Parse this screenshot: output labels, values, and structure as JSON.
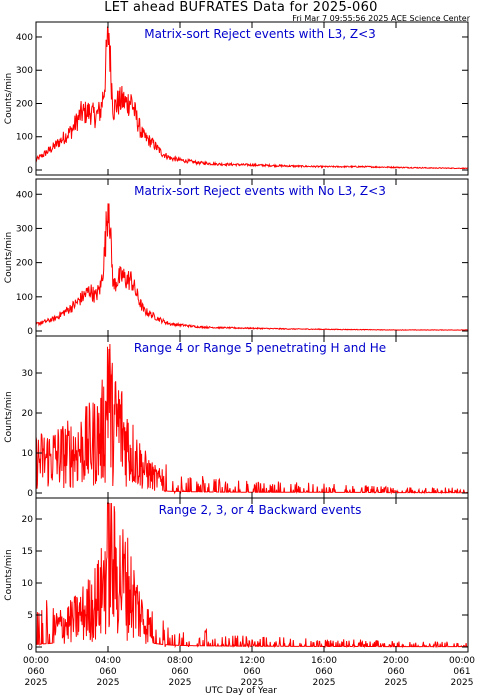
{
  "header": {
    "title": "LET ahead BUFRATES Data for 2025-060",
    "timestamp": "Fri Mar  7 09:55:56 2025 ACE Science Center"
  },
  "x_axis": {
    "title": "UTC Day of Year",
    "ticks": [
      {
        "time": "00:00",
        "doy": "060",
        "year": "2025"
      },
      {
        "time": "04:00",
        "doy": "060",
        "year": "2025"
      },
      {
        "time": "08:00",
        "doy": "060",
        "year": "2025"
      },
      {
        "time": "12:00",
        "doy": "060",
        "year": "2025"
      },
      {
        "time": "16:00",
        "doy": "060",
        "year": "2025"
      },
      {
        "time": "20:00",
        "doy": "060",
        "year": "2025"
      },
      {
        "time": "00:00",
        "doy": "061",
        "year": "2025"
      }
    ]
  },
  "style": {
    "series_color": "#ff0000",
    "label_color": "#0000cc",
    "axis_color": "#000000"
  },
  "chart_data": [
    {
      "type": "line",
      "title": "Matrix-sort Reject events with L3, Z<3",
      "ylabel": "Counts/min",
      "xlim": [
        0,
        24
      ],
      "ylim": [
        0,
        430
      ],
      "yticks": [
        0,
        100,
        200,
        300,
        400
      ],
      "series": [
        {
          "x": [
            0,
            1,
            2,
            2.5,
            3,
            3.3,
            3.6,
            3.8,
            3.95,
            4.05,
            4.15,
            4.3,
            4.5,
            4.8,
            5,
            5.3,
            5.5,
            5.8,
            6,
            6.5,
            7,
            7.5,
            8,
            9,
            10,
            12,
            14,
            16,
            18,
            20,
            22,
            24
          ],
          "y": [
            30,
            70,
            120,
            170,
            175,
            160,
            180,
            250,
            370,
            420,
            300,
            180,
            200,
            210,
            200,
            210,
            170,
            120,
            100,
            80,
            50,
            35,
            30,
            22,
            18,
            15,
            12,
            10,
            10,
            8,
            6,
            5
          ]
        }
      ]
    },
    {
      "type": "line",
      "title": "Matrix-sort Reject events with No L3, Z<3",
      "ylabel": "Counts/min",
      "xlim": [
        0,
        24
      ],
      "ylim": [
        0,
        430
      ],
      "yticks": [
        0,
        100,
        200,
        300,
        400
      ],
      "series": [
        {
          "x": [
            0,
            1,
            2,
            2.5,
            3,
            3.3,
            3.6,
            3.8,
            3.95,
            4.05,
            4.15,
            4.3,
            4.5,
            4.8,
            5,
            5.3,
            5.5,
            5.8,
            6,
            6.5,
            7,
            7.5,
            8,
            9,
            10,
            12,
            14,
            16,
            18,
            20,
            22,
            24
          ],
          "y": [
            20,
            35,
            70,
            95,
            120,
            100,
            130,
            220,
            340,
            400,
            260,
            130,
            150,
            160,
            150,
            150,
            120,
            80,
            60,
            45,
            30,
            20,
            18,
            12,
            10,
            8,
            6,
            5,
            4,
            3,
            3,
            3
          ]
        }
      ]
    },
    {
      "type": "line",
      "title": "Range 4 or Range 5 penetrating H and He",
      "ylabel": "Counts/min",
      "xlim": [
        0,
        24
      ],
      "ylim": [
        0,
        38
      ],
      "yticks": [
        0,
        10,
        20,
        30
      ],
      "series": [
        {
          "x": [
            0,
            1,
            2,
            3,
            3.6,
            3.9,
            4.0,
            4.1,
            4.3,
            4.6,
            5,
            5.5,
            6,
            6.5,
            7,
            7.5,
            8,
            9,
            10,
            12,
            14,
            16,
            18,
            20,
            22,
            24
          ],
          "y": [
            8,
            9,
            10,
            12,
            14,
            18,
            35,
            22,
            16,
            17,
            13,
            9,
            6,
            4,
            3,
            2,
            2,
            1.5,
            1.2,
            1,
            1,
            0.8,
            0.7,
            0.5,
            0.5,
            0.4
          ]
        }
      ]
    },
    {
      "type": "line",
      "title": "Range 2, 3, or 4 Backward events",
      "ylabel": "Counts/min",
      "xlim": [
        0,
        24
      ],
      "ylim": [
        0,
        22.5
      ],
      "yticks": [
        0,
        5,
        10,
        15,
        20
      ],
      "series": [
        {
          "x": [
            0,
            1,
            2,
            3,
            3.6,
            3.9,
            4.0,
            4.1,
            4.3,
            4.6,
            5,
            5.5,
            6,
            6.5,
            7,
            7.5,
            8,
            9,
            10,
            12,
            14,
            16,
            18,
            20,
            22,
            24
          ],
          "y": [
            2,
            3,
            4,
            6,
            8,
            12,
            20,
            14,
            12,
            11,
            10,
            7,
            4,
            3,
            2,
            1.5,
            1.2,
            1,
            0.8,
            0.6,
            0.5,
            0.4,
            0.4,
            0.3,
            0.3,
            0.3
          ]
        }
      ]
    }
  ]
}
